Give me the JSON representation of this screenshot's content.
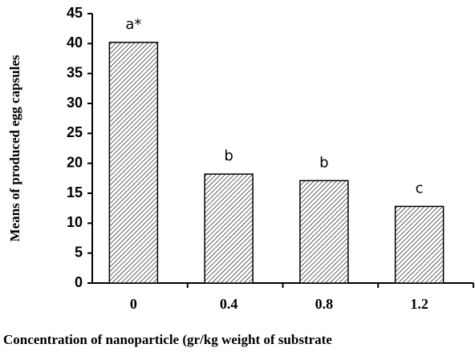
{
  "chart_data": {
    "type": "bar",
    "categories": [
      "0",
      "0.4",
      "0.8",
      "1.2"
    ],
    "values": [
      40.2,
      18.2,
      17.1,
      12.8
    ],
    "annotations": [
      "a*",
      "b",
      "b",
      "c"
    ],
    "ylim": [
      0,
      45
    ],
    "yticks": [
      0,
      5,
      10,
      15,
      20,
      25,
      30,
      35,
      40,
      45
    ],
    "y_label": "Means of produced egg capsules",
    "x_label": "Concentration of nanoparticle (gr/kg weight of substrate",
    "color": "#ffffff"
  }
}
